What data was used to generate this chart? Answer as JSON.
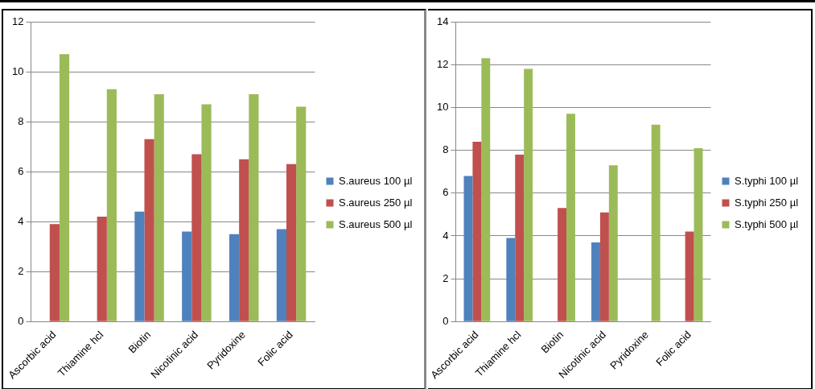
{
  "chart_data": [
    {
      "type": "bar",
      "categories": [
        "Ascorbic acid",
        "Thiamine hcl",
        "Biotin",
        "Nicotinic acid",
        "Pyridoxine",
        "Folic acid"
      ],
      "series": [
        {
          "name": "S.aureus 100 µl",
          "color": "#4f81bd",
          "values": [
            null,
            null,
            4.4,
            3.6,
            3.5,
            3.7
          ]
        },
        {
          "name": "S.aureus 250 µl",
          "color": "#c0504d",
          "values": [
            3.9,
            4.2,
            7.3,
            6.7,
            6.5,
            6.3
          ]
        },
        {
          "name": "S.aureus 500 µl",
          "color": "#9bbb59",
          "values": [
            10.7,
            9.3,
            9.1,
            8.7,
            9.1,
            8.6
          ]
        }
      ],
      "ylim": [
        0,
        12
      ],
      "yticks": [
        0,
        2,
        4,
        6,
        8,
        10,
        12
      ],
      "grid": "y",
      "legend": "right"
    },
    {
      "type": "bar",
      "categories": [
        "Ascorbic acid",
        "Thiamine hcl",
        "Biotin",
        "Nicotinic acid",
        "Pyridoxine",
        "Folic acid"
      ],
      "series": [
        {
          "name": "S.typhi 100 µl",
          "color": "#4f81bd",
          "values": [
            6.8,
            3.9,
            null,
            3.7,
            null,
            null
          ]
        },
        {
          "name": "S.typhi 250 µl",
          "color": "#c0504d",
          "values": [
            8.4,
            7.8,
            5.3,
            5.1,
            null,
            4.2
          ]
        },
        {
          "name": "S.typhi 500 µl",
          "color": "#9bbb59",
          "values": [
            12.3,
            11.8,
            9.7,
            7.3,
            9.2,
            8.1
          ]
        }
      ],
      "ylim": [
        0,
        14
      ],
      "yticks": [
        0,
        2,
        4,
        6,
        8,
        10,
        12,
        14
      ],
      "grid": "y",
      "legend": "right"
    }
  ]
}
